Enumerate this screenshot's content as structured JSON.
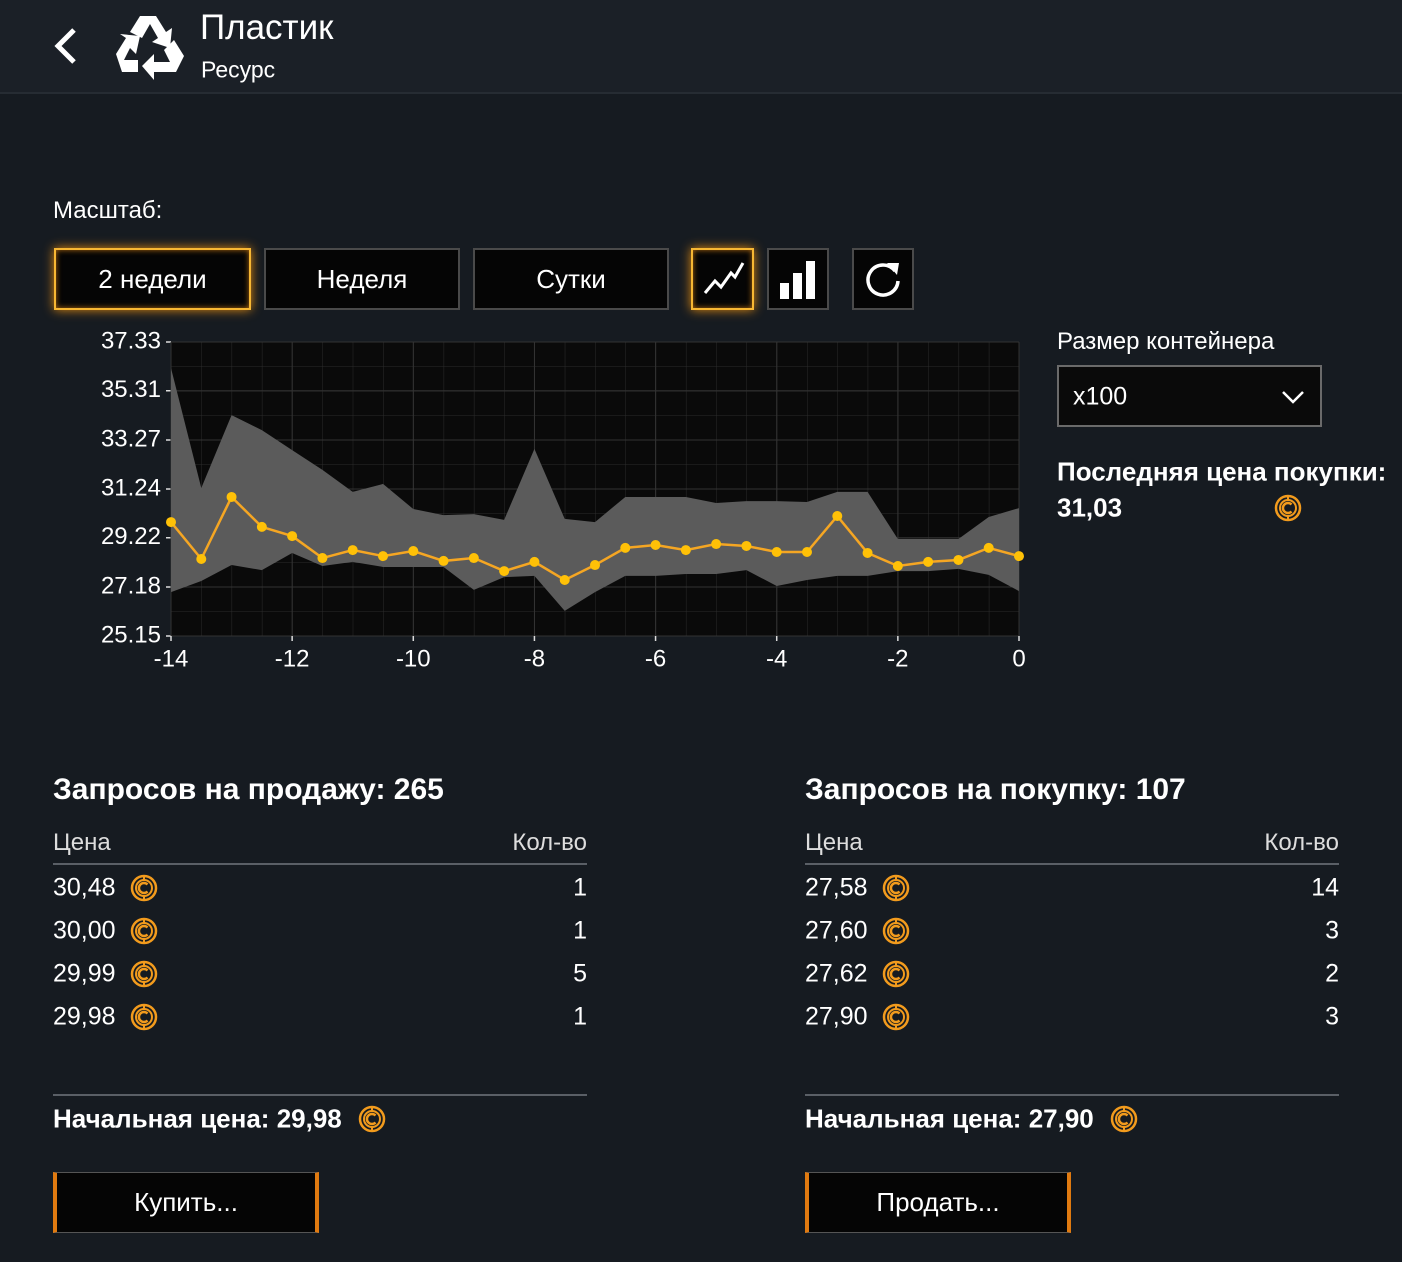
{
  "header": {
    "title": "Пластик",
    "subtitle": "Ресурс"
  },
  "scale_label": "Масштаб:",
  "scale_buttons": [
    "2 недели",
    "Неделя",
    "Сутки"
  ],
  "chart_data": {
    "type": "line",
    "x": [
      -14,
      -13.5,
      -13,
      -12.5,
      -12,
      -11.5,
      -11,
      -10.5,
      -10,
      -9.5,
      -9,
      -8.5,
      -8,
      -7.5,
      -7,
      -6.5,
      -6,
      -5.5,
      -5,
      -4.5,
      -4,
      -3.5,
      -3,
      -2.5,
      -2,
      -1.5,
      -1,
      -0.5,
      0
    ],
    "band": {
      "color": "#5b5b5b",
      "upper": [
        36.25,
        31.28,
        34.3,
        33.68,
        32.85,
        32.03,
        31.12,
        31.45,
        30.41,
        30.16,
        30.2,
        29.96,
        32.9,
        30.0,
        29.87,
        30.91,
        30.91,
        30.91,
        30.66,
        30.74,
        30.74,
        30.7,
        31.12,
        31.12,
        29.17,
        29.17,
        29.17,
        30.08,
        30.45
      ],
      "lower": [
        26.97,
        27.43,
        28.09,
        27.88,
        28.59,
        28.05,
        28.22,
        28.01,
        28.01,
        28.01,
        27.06,
        27.59,
        27.64,
        26.19,
        26.97,
        27.64,
        27.64,
        27.72,
        27.72,
        27.88,
        27.22,
        27.47,
        27.64,
        27.64,
        27.84,
        27.84,
        27.93,
        27.68,
        27.01
      ]
    },
    "series": [
      {
        "color": "#ffc107",
        "line_color": "#f5a623",
        "values": [
          29.87,
          28.34,
          30.91,
          29.67,
          29.29,
          28.38,
          28.71,
          28.46,
          28.67,
          28.26,
          28.38,
          27.84,
          28.22,
          27.47,
          28.09,
          28.8,
          28.92,
          28.71,
          28.96,
          28.88,
          28.63,
          28.63,
          30.12,
          28.59,
          28.05,
          28.22,
          28.3,
          28.8,
          28.46
        ]
      }
    ],
    "xlim": [
      -14,
      0
    ],
    "xticks": [
      -14,
      -12,
      -10,
      -8,
      -6,
      -4,
      -2,
      0
    ],
    "ylim": [
      25.15,
      37.33
    ],
    "yticks": [
      25.15,
      27.18,
      29.22,
      31.24,
      33.27,
      35.31,
      37.33
    ],
    "grid": true
  },
  "container_label": "Размер контейнера",
  "container_value": "x100",
  "last_price": {
    "label": "Последняя цена покупки:",
    "value": "31,03"
  },
  "sell": {
    "title": "Запросов на продажу:",
    "count": 265,
    "columns": [
      "Цена",
      "Кол-во"
    ],
    "rows": [
      [
        "30,48",
        1
      ],
      [
        "30,00",
        1
      ],
      [
        "29,99",
        5
      ],
      [
        "29,98",
        1
      ]
    ],
    "start_label": "Начальная цена:",
    "start_price": "29,98",
    "button": "Купить..."
  },
  "buy": {
    "title": "Запросов на покупку:",
    "count": 107,
    "columns": [
      "Цена",
      "Кол-во"
    ],
    "rows": [
      [
        "27,58",
        14
      ],
      [
        "27,60",
        3
      ],
      [
        "27,62",
        2
      ],
      [
        "27,90",
        3
      ]
    ],
    "start_label": "Начальная цена:",
    "start_price": "27,90",
    "button": "Продать..."
  }
}
